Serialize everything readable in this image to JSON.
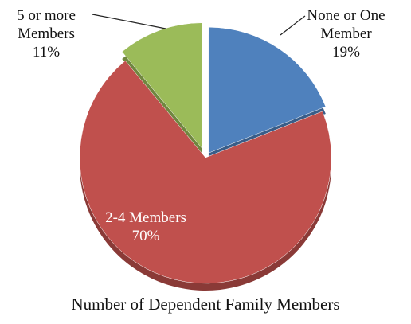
{
  "chart_data": {
    "type": "pie",
    "title": "Number of Dependent Family Members",
    "categories": [
      "None or One Member",
      "2-4 Members",
      "5 or more Members"
    ],
    "values": [
      19,
      70,
      11
    ],
    "value_labels": [
      "19%",
      "70%",
      "11%"
    ],
    "colors": [
      "#4f81bd",
      "#c0504d",
      "#9bbb59"
    ]
  }
}
